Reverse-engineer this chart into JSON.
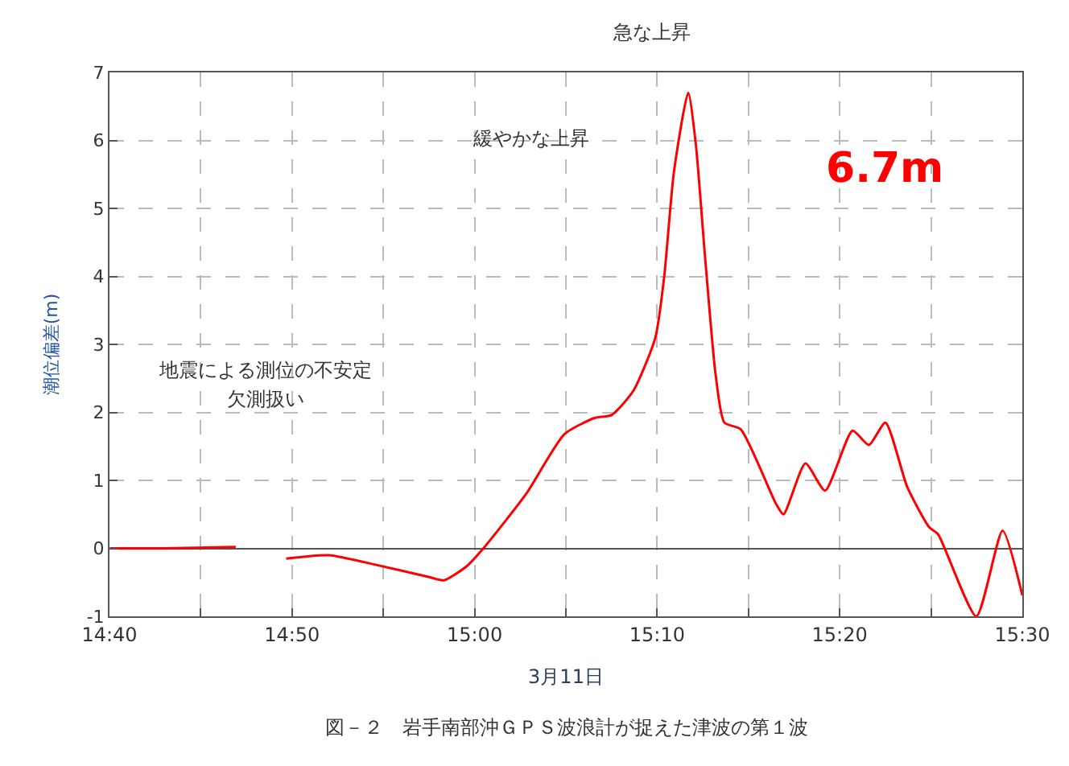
{
  "chart_data": {
    "type": "line",
    "xlabel": "3月11日",
    "ylabel": "潮位偏差(m)",
    "x": [
      14.667,
      14.717,
      14.782,
      14.8,
      14.828,
      14.867,
      14.912,
      14.958,
      14.972,
      14.993,
      15.008,
      15.047,
      15.082,
      15.11,
      15.125,
      15.145,
      15.165,
      15.173,
      15.182,
      15.195,
      15.202,
      15.21,
      15.22,
      15.228,
      15.243,
      15.275,
      15.282,
      15.302,
      15.32,
      15.345,
      15.36,
      15.375,
      15.395,
      15.415,
      15.423,
      15.458,
      15.482,
      15.5
    ],
    "series": [
      {
        "color": "#ff0000",
        "values": [
          0,
          0,
          0.02,
          null,
          -0.15,
          -0.1,
          -0.25,
          -0.42,
          -0.47,
          -0.26,
          0,
          0.8,
          1.68,
          1.92,
          1.96,
          2.32,
          3.1,
          3.98,
          5.54,
          6.7,
          5.94,
          4.36,
          2.56,
          1.85,
          1.75,
          0.66,
          0.5,
          1.25,
          0.85,
          1.73,
          1.52,
          1.85,
          0.9,
          0.31,
          0.21,
          -1.0,
          0.26,
          -0.69
        ]
      }
    ],
    "xlim": [
      14.6667,
      15.5
    ],
    "xticks": [
      {
        "value": 14.6667,
        "label": "14:40"
      },
      {
        "value": 14.75,
        "label": null
      },
      {
        "value": 14.8333,
        "label": "14:50"
      },
      {
        "value": 14.9167,
        "label": null
      },
      {
        "value": 15,
        "label": "15:00"
      },
      {
        "value": 15.0833,
        "label": null
      },
      {
        "value": 15.1667,
        "label": "15:10"
      },
      {
        "value": 15.25,
        "label": null
      },
      {
        "value": 15.3333,
        "label": "15:20"
      },
      {
        "value": 15.4167,
        "label": null
      },
      {
        "value": 15.5,
        "label": "15:30"
      }
    ],
    "ylim": [
      -1,
      7
    ],
    "yticks": [
      -1,
      0,
      1,
      2,
      3,
      4,
      5,
      6,
      7
    ],
    "grid": true,
    "marker": "none",
    "line_style": "solid",
    "annotations": [
      "地震による測位の不安定",
      "欠測扱い",
      "緩やかな上昇",
      "急な上昇",
      "6.7m",
      "図－２　岩手南部沖ＧＰＳ波浪計が捉えた津波の第１波"
    ]
  }
}
